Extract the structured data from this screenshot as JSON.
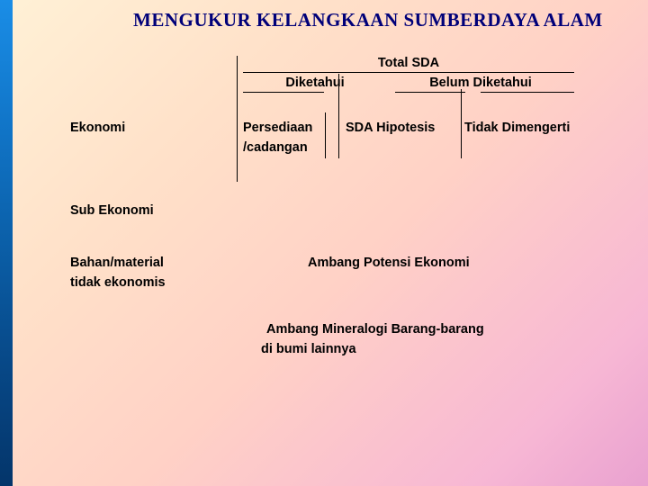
{
  "title": "MENGUKUR KELANGKAAN SUMBERDAYA ALAM",
  "header": {
    "total": "Total SDA",
    "known": "Diketahui",
    "unknown": "Belum Diketahui"
  },
  "rows": {
    "ekonomi": "Ekonomi",
    "persediaan": "Persediaan",
    "cadangan": "/cadangan",
    "hipotesis": "SDA Hipotesis",
    "tidak_dimengerti": "Tidak Dimengerti",
    "sub_ekonomi": "Sub Ekonomi",
    "bahan1": "Bahan/material",
    "bahan2": "tidak ekonomis",
    "ambang_pe": "Ambang Potensi Ekonomi",
    "ambang_min1": "Ambang Mineralogi Barang-barang",
    "ambang_min2": "di bumi lainnya"
  },
  "style": {
    "title_color": "#000079",
    "text_color": "#000000",
    "leftbar_gradient": [
      "#1a8de6",
      "#04356a"
    ],
    "bg_gradient": [
      "#fff1d6",
      "#e9a1d0"
    ]
  }
}
